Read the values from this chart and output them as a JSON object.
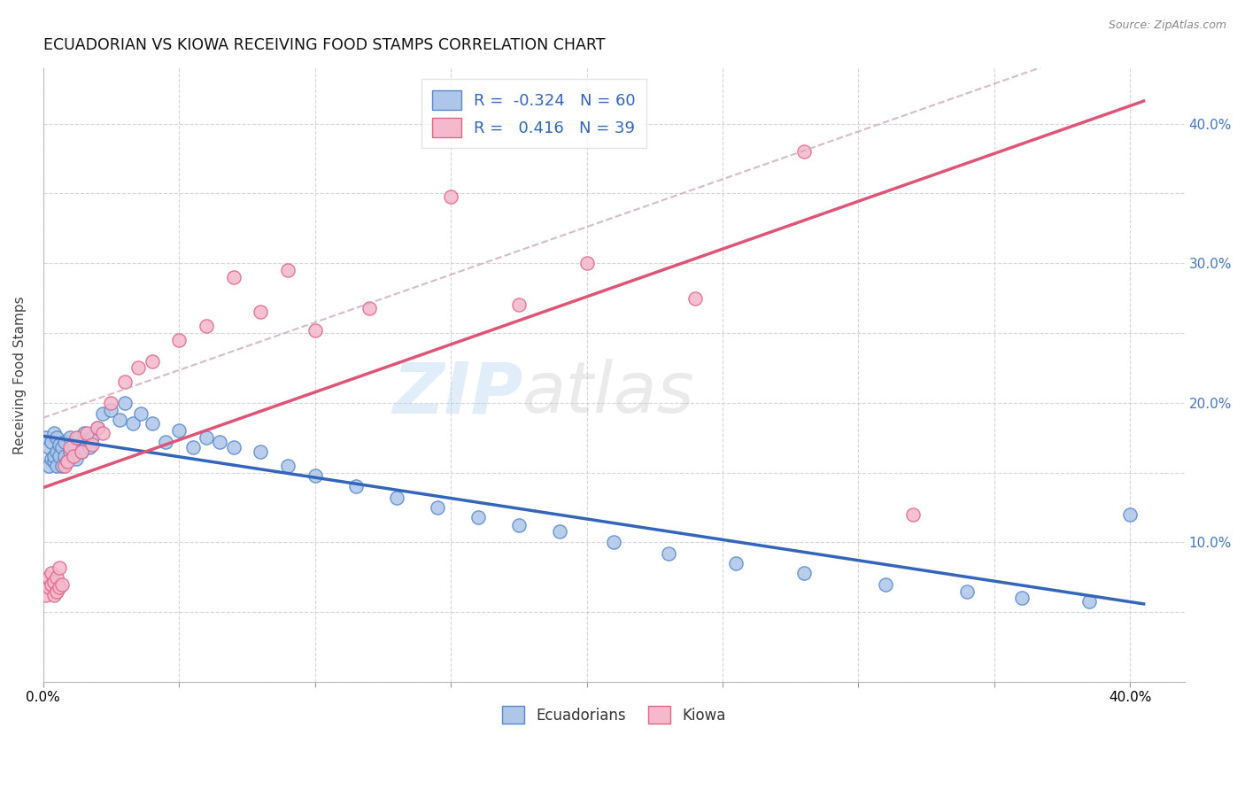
{
  "title": "ECUADORIAN VS KIOWA RECEIVING FOOD STAMPS CORRELATION CHART",
  "source": "Source: ZipAtlas.com",
  "ylabel": "Receiving Food Stamps",
  "xlim": [
    0.0,
    0.42
  ],
  "ylim": [
    0.0,
    0.44
  ],
  "ecuadorians_color": "#aec6e8",
  "ecuadorians_edge_color": "#5588cc",
  "kiowa_color": "#f5b8cc",
  "kiowa_edge_color": "#e06688",
  "ecuadorians_line_color": "#3366bb",
  "kiowa_line_color": "#dd5577",
  "dashed_line_color": "#ccaabb",
  "R_ecuadorians": -0.324,
  "N_ecuadorians": 60,
  "R_kiowa": 0.416,
  "N_kiowa": 39,
  "watermark_text": "ZIPatlas",
  "background_color": "#ffffff",
  "grid_color": "#cccccc",
  "right_tick_color": "#4477bb",
  "legend_text_color": "#3366bb",
  "ecuadorians_x": [
    0.001,
    0.002,
    0.002,
    0.003,
    0.003,
    0.004,
    0.004,
    0.004,
    0.005,
    0.005,
    0.005,
    0.006,
    0.006,
    0.007,
    0.007,
    0.008,
    0.008,
    0.009,
    0.01,
    0.01,
    0.011,
    0.012,
    0.013,
    0.014,
    0.015,
    0.016,
    0.017,
    0.018,
    0.02,
    0.022,
    0.025,
    0.028,
    0.03,
    0.033,
    0.036,
    0.04,
    0.045,
    0.05,
    0.055,
    0.06,
    0.065,
    0.07,
    0.08,
    0.09,
    0.1,
    0.115,
    0.13,
    0.145,
    0.16,
    0.175,
    0.19,
    0.21,
    0.23,
    0.255,
    0.28,
    0.31,
    0.34,
    0.36,
    0.385,
    0.4
  ],
  "ecuadorians_y": [
    0.175,
    0.168,
    0.155,
    0.172,
    0.16,
    0.178,
    0.158,
    0.162,
    0.175,
    0.165,
    0.155,
    0.17,
    0.162,
    0.168,
    0.155,
    0.172,
    0.162,
    0.158,
    0.175,
    0.165,
    0.17,
    0.16,
    0.175,
    0.165,
    0.178,
    0.172,
    0.168,
    0.175,
    0.182,
    0.192,
    0.195,
    0.188,
    0.2,
    0.185,
    0.192,
    0.185,
    0.172,
    0.18,
    0.168,
    0.175,
    0.172,
    0.168,
    0.165,
    0.155,
    0.148,
    0.14,
    0.132,
    0.125,
    0.118,
    0.112,
    0.108,
    0.1,
    0.092,
    0.085,
    0.078,
    0.07,
    0.065,
    0.06,
    0.058,
    0.12
  ],
  "kiowa_x": [
    0.001,
    0.002,
    0.002,
    0.003,
    0.003,
    0.004,
    0.004,
    0.005,
    0.005,
    0.006,
    0.006,
    0.007,
    0.008,
    0.009,
    0.01,
    0.011,
    0.012,
    0.014,
    0.016,
    0.018,
    0.02,
    0.022,
    0.025,
    0.03,
    0.035,
    0.04,
    0.05,
    0.06,
    0.07,
    0.08,
    0.09,
    0.1,
    0.12,
    0.15,
    0.175,
    0.2,
    0.24,
    0.28,
    0.32
  ],
  "kiowa_y": [
    0.062,
    0.068,
    0.075,
    0.07,
    0.078,
    0.062,
    0.072,
    0.065,
    0.075,
    0.068,
    0.082,
    0.07,
    0.155,
    0.158,
    0.168,
    0.162,
    0.175,
    0.165,
    0.178,
    0.17,
    0.182,
    0.178,
    0.2,
    0.215,
    0.225,
    0.23,
    0.245,
    0.255,
    0.29,
    0.265,
    0.295,
    0.252,
    0.268,
    0.348,
    0.27,
    0.3,
    0.275,
    0.38,
    0.12
  ]
}
